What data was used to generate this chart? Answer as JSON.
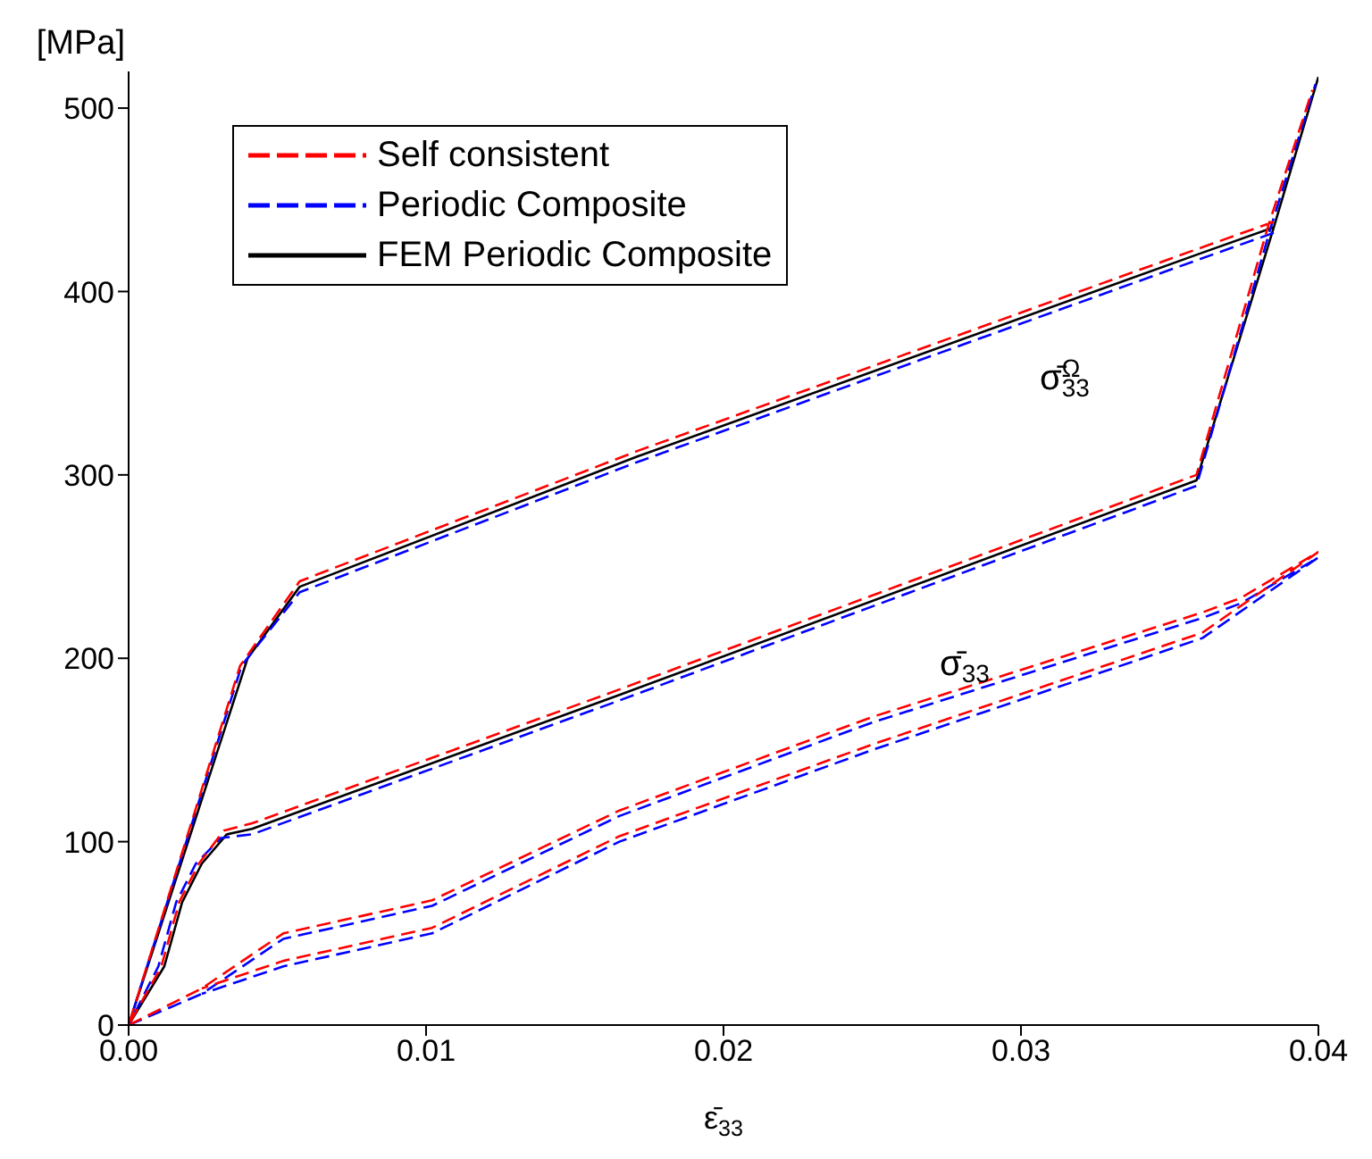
{
  "chart_data": {
    "type": "line",
    "xlabel": "ε̄$_{33}$",
    "ylabel": "[MPa]",
    "xlim": [
      0,
      0.04
    ],
    "xticks": [
      {
        "value": 0,
        "label": "0.00"
      },
      {
        "value": 0.01,
        "label": "0.01"
      },
      {
        "value": 0.02,
        "label": "0.02"
      },
      {
        "value": 0.03,
        "label": "0.03"
      },
      {
        "value": 0.04,
        "label": "0.04"
      }
    ],
    "ylim": [
      0,
      520
    ],
    "yticks": [
      0,
      100,
      200,
      300,
      400,
      500
    ],
    "grid": false,
    "legend": "top left",
    "marker": "none",
    "annotations": [
      "σ̄$_{33}$$^{Ω}$",
      "σ̄$_{33}$"
    ],
    "series": [
      {
        "name": "FEM Periodic Composite",
        "color": "#000000",
        "line_style": "solid",
        "x": [
          0.0385,
          0.0359,
          0.0171,
          0.00575,
          0.004,
          0,
          0.0012,
          0.0018,
          0.00246,
          0.0033,
          0.00415,
          0.0165,
          0.0359,
          0.0385,
          0.04
        ],
        "values": [
          435,
          420,
          310,
          239,
          200,
          0,
          32,
          67,
          88,
          104,
          107,
          180,
          297,
          435,
          517
        ]
      },
      {
        "name": "Periodic Composite",
        "color": "#0000ff",
        "line_style": "dashed",
        "x": [
          0.0385,
          0.0359,
          0.0171,
          0.00575,
          0.0038,
          0,
          0.001,
          0.0016,
          0.00226,
          0.0031,
          0.00415,
          0.0165,
          0.0359,
          0.0384,
          0.0399,
          null,
          0,
          0.00246,
          0.0052,
          0.0102,
          0.0165,
          0.025,
          0.0361,
          0.0374,
          0.04,
          0.0361,
          0.025,
          0.0165,
          0.0102,
          0.0052,
          0.00246
        ],
        "values": [
          432,
          417,
          307,
          236,
          196,
          0,
          32,
          67,
          88,
          102,
          104,
          177,
          294,
          435,
          513,
          null,
          0,
          17,
          47,
          65,
          114,
          165,
          222,
          230,
          255,
          211,
          150,
          100,
          50,
          32,
          17
        ]
      },
      {
        "name": "Self consistent",
        "color": "#ff0000",
        "line_style": "dashed",
        "x": [
          0.0385,
          0.0359,
          0.0171,
          0.00575,
          0.00375,
          0,
          0.0011,
          0.0017,
          0.00236,
          0.0032,
          0.00415,
          0.0165,
          0.0359,
          0.0383,
          0.0398,
          null,
          0,
          0.00246,
          0.0052,
          0.0102,
          0.0165,
          0.025,
          0.0361,
          0.0374,
          0.04,
          0.0361,
          0.025,
          0.0165,
          0.0102,
          0.0052,
          0.00246
        ],
        "values": [
          438,
          423,
          313,
          242,
          196,
          0,
          32,
          67,
          88,
          106,
          110,
          183,
          300,
          435,
          510,
          null,
          0,
          20,
          50,
          68,
          117,
          168,
          225,
          233,
          258,
          214,
          153,
          103,
          53,
          35,
          20
        ]
      }
    ]
  }
}
